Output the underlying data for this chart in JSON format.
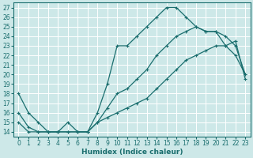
{
  "xlabel": "Humidex (Indice chaleur)",
  "bg_color": "#cde8e8",
  "grid_color": "#b0d4d4",
  "line_color": "#1a6e6e",
  "xlim": [
    -0.5,
    23.5
  ],
  "ylim": [
    13.5,
    27.5
  ],
  "xticks": [
    0,
    1,
    2,
    3,
    4,
    5,
    6,
    7,
    8,
    9,
    10,
    11,
    12,
    13,
    14,
    15,
    16,
    17,
    18,
    19,
    20,
    21,
    22,
    23
  ],
  "yticks": [
    14,
    15,
    16,
    17,
    18,
    19,
    20,
    21,
    22,
    23,
    24,
    25,
    26,
    27
  ],
  "line_max_x": [
    0,
    1,
    2,
    3,
    4,
    5,
    6,
    7,
    8,
    9,
    10,
    11,
    12,
    13,
    14,
    15,
    16,
    17,
    18,
    19,
    20,
    21,
    22,
    23
  ],
  "line_max_y": [
    18,
    16,
    15,
    14,
    14,
    15,
    14,
    14,
    16,
    19,
    23,
    23,
    24,
    25,
    26,
    27,
    27,
    26,
    25,
    24.5,
    24.5,
    23,
    22,
    20
  ],
  "line_mid_x": [
    0,
    1,
    2,
    3,
    4,
    5,
    6,
    7,
    8,
    9,
    10,
    11,
    12,
    13,
    14,
    15,
    16,
    17,
    18,
    19,
    20,
    21,
    22,
    23
  ],
  "line_mid_y": [
    16,
    14.5,
    14,
    14,
    14,
    14,
    14,
    14,
    15,
    16.5,
    18,
    18.5,
    19.5,
    20.5,
    22,
    23,
    24,
    24.5,
    25,
    24.5,
    24.5,
    24,
    23,
    20
  ],
  "line_min_x": [
    0,
    1,
    2,
    3,
    4,
    5,
    6,
    7,
    8,
    9,
    10,
    11,
    12,
    13,
    14,
    15,
    16,
    17,
    18,
    19,
    20,
    21,
    22,
    23
  ],
  "line_min_y": [
    15,
    14,
    14,
    14,
    14,
    14,
    14,
    14,
    15,
    15.5,
    16,
    16.5,
    17,
    17.5,
    18.5,
    19.5,
    20.5,
    21.5,
    22,
    22.5,
    23,
    23,
    23.5,
    19.5
  ],
  "xlabel_fontsize": 6.5,
  "tick_fontsize": 5.5
}
